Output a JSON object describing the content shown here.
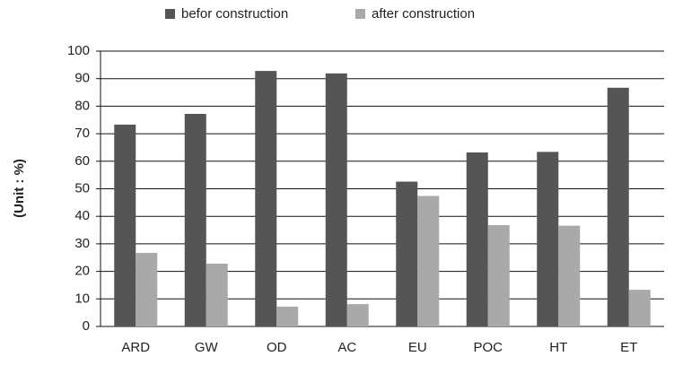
{
  "chart_data": {
    "type": "bar",
    "y_label": "(Unit : %)",
    "categories": [
      "ARD",
      "GW",
      "OD",
      "AC",
      "EU",
      "POC",
      "HT",
      "ET"
    ],
    "series": [
      {
        "name": "befor construction",
        "color": "#555555",
        "values": [
          73.3,
          77.2,
          92.8,
          91.9,
          52.6,
          63.2,
          63.4,
          86.7
        ]
      },
      {
        "name": "after construction",
        "color": "#a9a9a9",
        "values": [
          26.7,
          22.8,
          7.2,
          8.1,
          47.4,
          36.8,
          36.6,
          13.3
        ]
      }
    ],
    "ylim": [
      0,
      100
    ],
    "yticks": [
      0,
      10,
      20,
      30,
      40,
      50,
      60,
      70,
      80,
      90,
      100
    ],
    "grid": true,
    "legend": "top"
  }
}
